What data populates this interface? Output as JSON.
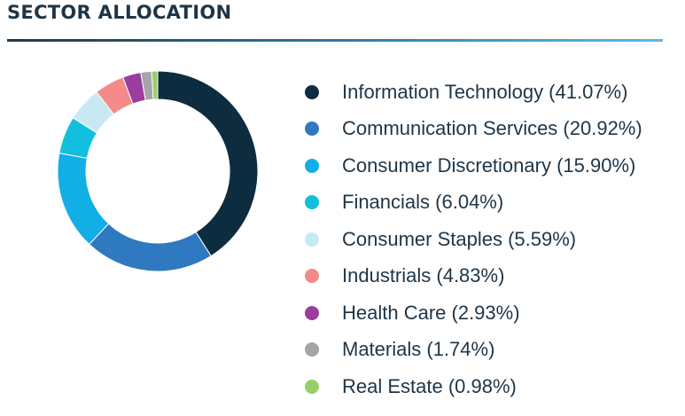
{
  "chart_data": {
    "type": "pie",
    "title": "SECTOR ALLOCATION",
    "categories": [
      "Information Technology",
      "Communication Services",
      "Consumer Discretionary",
      "Financials",
      "Consumer Staples",
      "Industrials",
      "Health Care",
      "Materials",
      "Real Estate"
    ],
    "values": [
      41.07,
      20.92,
      15.9,
      6.04,
      5.59,
      4.83,
      2.93,
      1.74,
      0.98
    ],
    "legend_labels": [
      "Information Technology (41.07%)",
      "Communication Services (20.92%)",
      "Consumer Discretionary (15.90%)",
      "Financials (6.04%)",
      "Consumer Staples (5.59%)",
      "Industrials (4.83%)",
      "Health Care (2.93%)",
      "Materials (1.74%)",
      "Real Estate (0.98%)"
    ],
    "colors": [
      "#0d2c3f",
      "#2e79bf",
      "#12aee6",
      "#12bfdc",
      "#c8e9f4",
      "#f48a8a",
      "#9b3d9f",
      "#a3a5a8",
      "#98cf6a"
    ],
    "legend_position": "right",
    "style": "donut"
  }
}
